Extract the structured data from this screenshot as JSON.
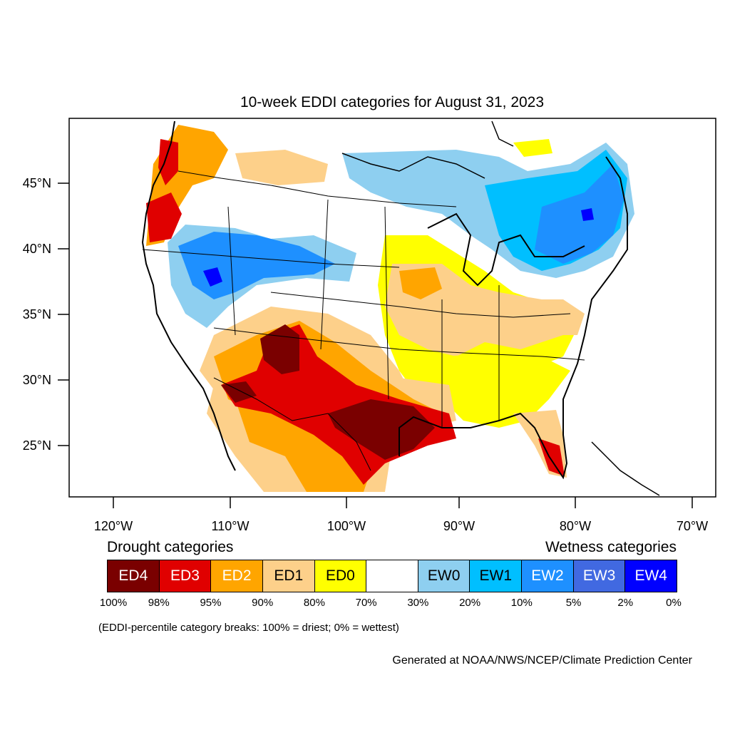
{
  "map": {
    "title": "10-week EDDI categories for August 31, 2023",
    "lat_ticks": [
      "45°N",
      "40°N",
      "35°N",
      "30°N",
      "25°N"
    ],
    "lon_ticks": [
      "120°W",
      "110°W",
      "100°W",
      "90°W",
      "80°W",
      "70°W"
    ]
  },
  "colors": {
    "ED4": "#7a0000",
    "ED3": "#e00000",
    "ED2": "#ffa500",
    "ED1": "#fdd08a",
    "ED0": "#ffff00",
    "NEUTRAL": "#ffffff",
    "EW0": "#8ecff0",
    "EW1": "#00bfff",
    "EW2": "#1e90ff",
    "EW3": "#4169e1",
    "EW4": "#0000ff"
  },
  "legend": {
    "drought_label": "Drought categories",
    "wetness_label": "Wetness categories",
    "categories": [
      "ED4",
      "ED3",
      "ED2",
      "ED1",
      "ED0",
      "",
      "EW0",
      "EW1",
      "EW2",
      "EW3",
      "EW4"
    ],
    "percentiles": [
      "100%",
      "98%",
      "95%",
      "90%",
      "80%",
      "70%",
      "30%",
      "20%",
      "10%",
      "5%",
      "2%",
      "0%"
    ],
    "note": "(EDDI-percentile category breaks: 100% = driest; 0% = wettest)"
  },
  "credit": "Generated at NOAA/NWS/NCEP/Climate Prediction Center"
}
